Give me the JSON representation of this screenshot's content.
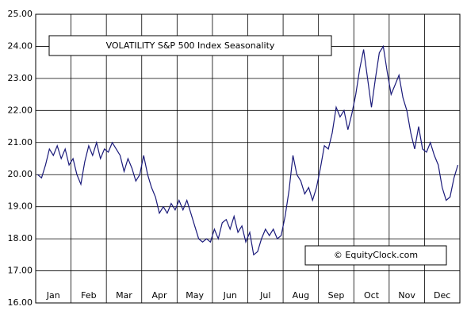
{
  "chart_data": {
    "type": "line",
    "title": "VOLATILITY S&P 500 Index Seasonality",
    "watermark": "© EquityClock.com",
    "categories": [
      "Jan",
      "Feb",
      "Mar",
      "Apr",
      "May",
      "Jun",
      "Jul",
      "Aug",
      "Sep",
      "Oct",
      "Nov",
      "Dec"
    ],
    "values": [
      [
        20.0,
        19.9,
        20.3,
        20.8,
        20.6,
        20.9,
        20.5,
        20.8,
        20.3
      ],
      [
        20.5,
        20.0,
        19.7,
        20.4,
        20.9,
        20.6,
        21.0,
        20.5,
        20.8
      ],
      [
        20.7,
        21.0,
        20.8,
        20.6,
        20.1,
        20.5,
        20.2,
        19.8,
        20.0
      ],
      [
        20.6,
        20.0,
        19.6,
        19.3,
        18.8,
        19.0,
        18.8,
        19.1,
        18.9
      ],
      [
        19.2,
        18.9,
        19.2,
        18.8,
        18.4,
        18.0,
        17.9,
        18.0,
        17.9
      ],
      [
        18.3,
        18.0,
        18.5,
        18.6,
        18.3,
        18.7,
        18.2,
        18.4,
        17.9
      ],
      [
        18.2,
        17.5,
        17.6,
        18.0,
        18.3,
        18.1,
        18.3,
        18.0,
        18.1
      ],
      [
        18.7,
        19.5,
        20.6,
        20.0,
        19.8,
        19.4,
        19.6,
        19.2,
        19.6
      ],
      [
        20.2,
        20.9,
        20.8,
        21.3,
        22.1,
        21.8,
        22.0,
        21.4,
        21.9
      ],
      [
        22.5,
        23.3,
        23.9,
        23.0,
        22.1,
        23.0,
        23.8,
        24.0,
        23.2
      ],
      [
        22.5,
        22.8,
        23.1,
        22.4,
        22.0,
        21.3,
        20.8,
        21.5,
        20.8
      ],
      [
        20.7,
        21.0,
        20.6,
        20.3,
        19.6,
        19.2,
        19.3,
        19.9,
        20.3
      ]
    ],
    "color": "#1a1a7a",
    "ylim": [
      16,
      25
    ],
    "yticks": [
      {
        "value": 16,
        "label": "16.00"
      },
      {
        "value": 17,
        "label": "17.00"
      },
      {
        "value": 18,
        "label": "18.00"
      },
      {
        "value": 19,
        "label": "19.00"
      },
      {
        "value": 20,
        "label": "20.00"
      },
      {
        "value": 21,
        "label": "21.00"
      },
      {
        "value": 22,
        "label": "22.00"
      },
      {
        "value": 23,
        "label": "23.00"
      },
      {
        "value": 24,
        "label": "24.00"
      },
      {
        "value": 25,
        "label": "25.00"
      }
    ],
    "grid": true
  }
}
